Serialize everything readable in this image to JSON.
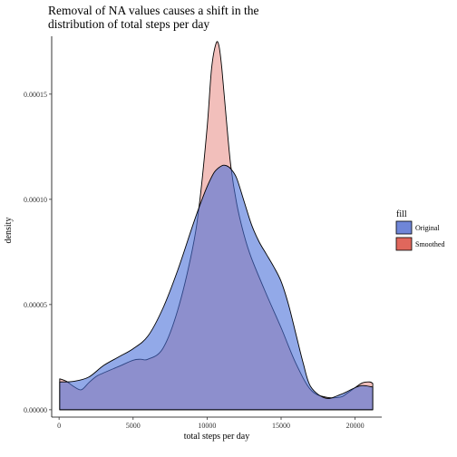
{
  "chart_data": {
    "type": "area",
    "title": "Removal of NA values causes a shift in the distribution of total steps per day",
    "title_lines": [
      "Removal of NA values causes a shift in the",
      "distribution of total steps per day"
    ],
    "xlabel": "total steps per day",
    "ylabel": "density",
    "xlim": [
      -500,
      21800
    ],
    "ylim": [
      -3.5e-06,
      0.0001775
    ],
    "x_ticks": [
      0,
      5000,
      10000,
      15000,
      20000
    ],
    "x_tick_labels": [
      "0",
      "5000",
      "10000",
      "15000",
      "20000"
    ],
    "y_ticks": [
      0,
      5e-05,
      0.0001,
      0.00015
    ],
    "y_tick_labels": [
      "0.00000",
      "0.00005",
      "0.00010",
      "0.00015"
    ],
    "grid": false,
    "legend": {
      "title": "fill",
      "placement": "right",
      "entries": [
        {
          "label": "Original",
          "color": "#4a6fd9"
        },
        {
          "label": "Smoothed",
          "color": "#e0675c"
        }
      ]
    },
    "series": [
      {
        "name": "Smoothed",
        "color": "#e0675c",
        "opacity": 0.42,
        "x": [
          41,
          500,
          1000,
          1500,
          2000,
          2500,
          3000,
          4000,
          5000,
          5500,
          6000,
          7000,
          8000,
          9000,
          9500,
          10000,
          10300,
          10600,
          10800,
          11000,
          11300,
          11600,
          12000,
          12500,
          13000,
          14000,
          15000,
          16000,
          17000,
          18000,
          19000,
          19500,
          20000,
          20500,
          21000,
          21194
        ],
        "y": [
          1.47e-05,
          1.35e-05,
          1.1e-05,
          9.5e-06,
          1.28e-05,
          1.58e-05,
          1.75e-05,
          2.05e-05,
          2.35e-05,
          2.4e-05,
          2.4e-05,
          2.9e-05,
          4.7e-05,
          7.6e-05,
          9.9e-05,
          0.000134,
          0.000162,
          0.000174,
          0.000173,
          0.000162,
          0.000138,
          0.000116,
          9.8e-05,
          8.3e-05,
          7.2e-05,
          5.5e-05,
          3.9e-05,
          2.2e-05,
          9.5e-06,
          6e-06,
          6e-06,
          8e-06,
          1.05e-05,
          1.28e-05,
          1.32e-05,
          1.25e-05
        ]
      },
      {
        "name": "Original",
        "color": "#4a6fd9",
        "opacity": 0.6,
        "x": [
          41,
          1000,
          2000,
          3000,
          4000,
          5000,
          6000,
          7000,
          8000,
          9000,
          9500,
          10000,
          10500,
          11000,
          11300,
          11600,
          12000,
          12500,
          13000,
          13500,
          14000,
          14500,
          15000,
          15500,
          16000,
          16500,
          17000,
          18000,
          19000,
          20000,
          20500,
          21194
        ],
        "y": [
          1.32e-05,
          1.35e-05,
          1.55e-05,
          2.1e-05,
          2.5e-05,
          2.9e-05,
          3.5e-05,
          4.8e-05,
          6.6e-05,
          8.7e-05,
          9.7e-05,
          0.000106,
          0.000113,
          0.000116,
          0.000116,
          0.0001145,
          0.00011,
          9.9e-05,
          8.8e-05,
          8e-05,
          7.4e-05,
          6.8e-05,
          6.1e-05,
          5e-05,
          3.6e-05,
          2.2e-05,
          1.1e-05,
          5.5e-06,
          7.2e-06,
          1.05e-05,
          1.15e-05,
          1.08e-05
        ]
      }
    ]
  }
}
